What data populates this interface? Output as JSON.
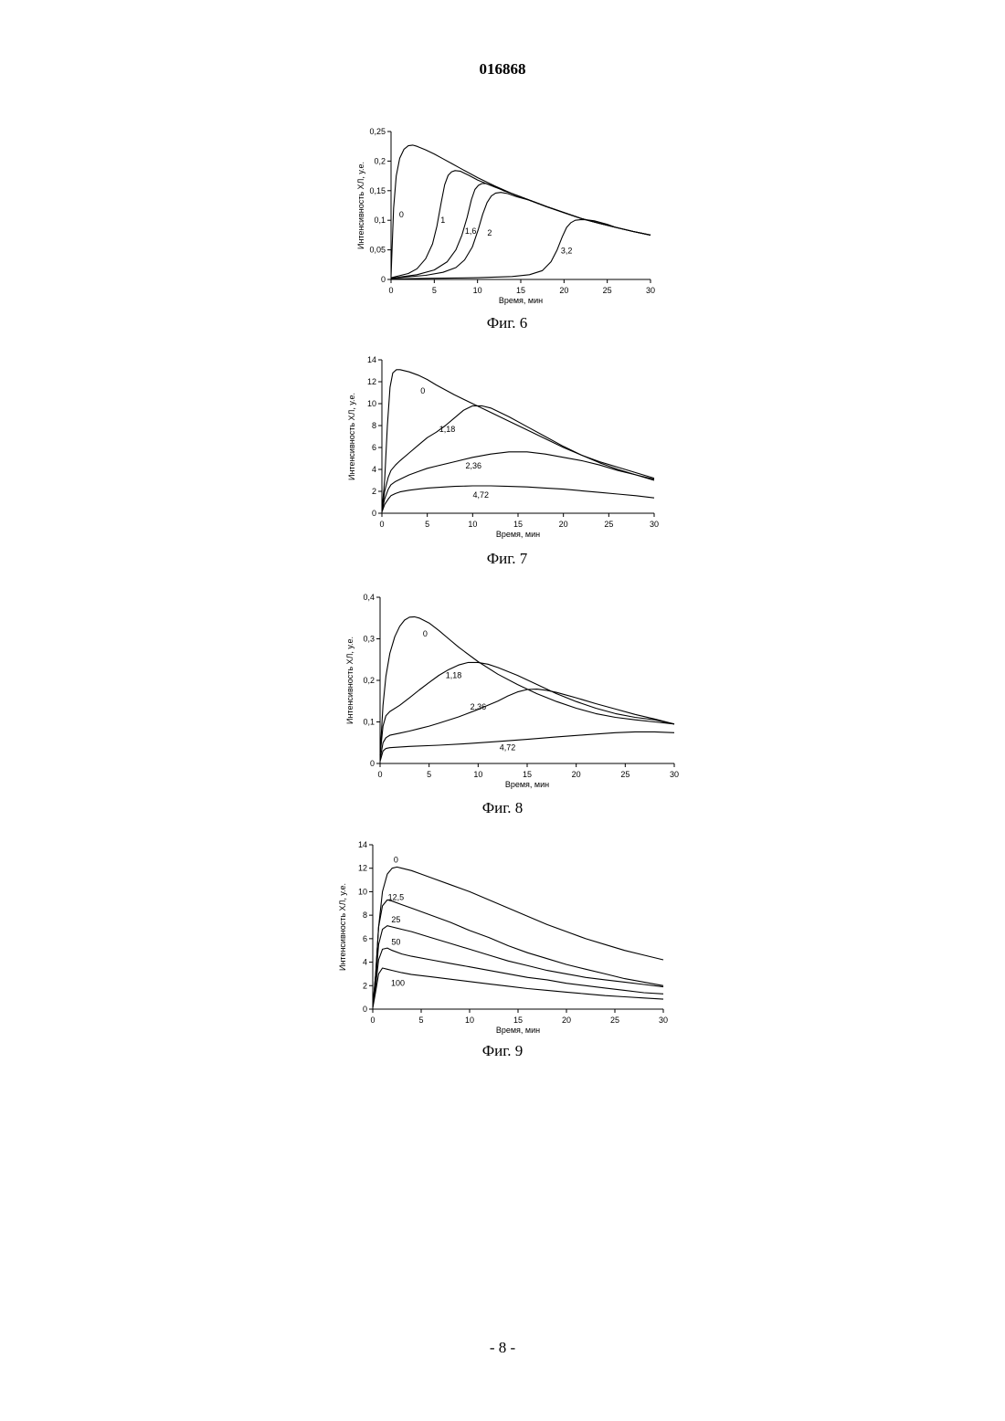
{
  "document": {
    "number": "016868",
    "page_label": "- 8 -"
  },
  "chart_data": [
    {
      "type": "line",
      "caption": "Фиг. 6",
      "xlabel": "Время, мин",
      "ylabel": "Интенсивность ХЛ, у.е.",
      "xlim": [
        0,
        30
      ],
      "ylim": [
        0,
        0.25
      ],
      "x_ticks": [
        0,
        5,
        10,
        15,
        20,
        25,
        30
      ],
      "y_ticks": [
        0,
        0.05,
        0.1,
        0.15,
        0.2,
        0.25
      ],
      "y_tick_labels": [
        "0",
        "0,05",
        "0,1",
        "0,15",
        "0,2",
        "0,25"
      ],
      "grid": false,
      "series": [
        {
          "name": "0",
          "label_at": [
            1.2,
            0.105
          ],
          "x": [
            0,
            0.3,
            0.6,
            1,
            1.5,
            2,
            2.5,
            3,
            4,
            5,
            6,
            7,
            8,
            10,
            12,
            14,
            16,
            18,
            20,
            22,
            24,
            26,
            28,
            30
          ],
          "y": [
            0.005,
            0.12,
            0.175,
            0.205,
            0.22,
            0.226,
            0.227,
            0.225,
            0.219,
            0.212,
            0.204,
            0.196,
            0.188,
            0.172,
            0.158,
            0.145,
            0.134,
            0.123,
            0.113,
            0.103,
            0.095,
            0.088,
            0.081,
            0.075
          ]
        },
        {
          "name": "1",
          "label_at": [
            6,
            0.096
          ],
          "x": [
            0,
            2,
            3,
            4,
            4.8,
            5.3,
            5.8,
            6.2,
            6.6,
            7,
            7.4,
            8,
            9,
            10,
            12,
            14,
            16,
            18,
            20,
            22,
            24,
            26,
            28,
            30
          ],
          "y": [
            0.003,
            0.01,
            0.018,
            0.035,
            0.06,
            0.09,
            0.13,
            0.16,
            0.176,
            0.182,
            0.184,
            0.183,
            0.176,
            0.168,
            0.156,
            0.145,
            0.134,
            0.123,
            0.113,
            0.103,
            0.095,
            0.088,
            0.081,
            0.075
          ]
        },
        {
          "name": "1,6",
          "label_at": [
            9.2,
            0.077
          ],
          "x": [
            0,
            3,
            5,
            6.5,
            7.5,
            8.2,
            8.8,
            9.3,
            9.7,
            10.1,
            10.5,
            11,
            12,
            13,
            14,
            16,
            18,
            20,
            22,
            24,
            26,
            28,
            30
          ],
          "y": [
            0.002,
            0.008,
            0.016,
            0.03,
            0.05,
            0.075,
            0.105,
            0.135,
            0.152,
            0.159,
            0.162,
            0.162,
            0.157,
            0.15,
            0.145,
            0.134,
            0.123,
            0.113,
            0.103,
            0.095,
            0.088,
            0.081,
            0.075
          ]
        },
        {
          "name": "2",
          "label_at": [
            11.4,
            0.074
          ],
          "x": [
            0,
            4,
            6,
            7.5,
            8.5,
            9.4,
            10.1,
            10.6,
            11.1,
            11.6,
            12.1,
            12.7,
            13.5,
            14.5,
            16,
            18,
            20,
            22,
            24,
            26,
            28,
            30
          ],
          "y": [
            0.002,
            0.007,
            0.012,
            0.02,
            0.033,
            0.055,
            0.085,
            0.11,
            0.13,
            0.141,
            0.146,
            0.147,
            0.145,
            0.14,
            0.134,
            0.123,
            0.113,
            0.103,
            0.095,
            0.088,
            0.081,
            0.075
          ]
        },
        {
          "name": "3,2",
          "label_at": [
            20.3,
            0.044
          ],
          "x": [
            0,
            5,
            10,
            14,
            16,
            17.5,
            18.5,
            19.2,
            19.8,
            20.3,
            20.8,
            21.3,
            21.9,
            22.5,
            23.5,
            25,
            26,
            28,
            30
          ],
          "y": [
            0.001,
            0.002,
            0.003,
            0.005,
            0.008,
            0.015,
            0.03,
            0.05,
            0.072,
            0.088,
            0.096,
            0.1,
            0.101,
            0.101,
            0.099,
            0.093,
            0.088,
            0.081,
            0.075
          ]
        }
      ]
    },
    {
      "type": "line",
      "caption": "Фиг. 7",
      "xlabel": "Время, мин",
      "ylabel": "Интенсивность ХЛ, у.е.",
      "xlim": [
        0,
        30
      ],
      "ylim": [
        0,
        14
      ],
      "x_ticks": [
        0,
        5,
        10,
        15,
        20,
        25,
        30
      ],
      "y_ticks": [
        0,
        2,
        4,
        6,
        8,
        10,
        12,
        14
      ],
      "y_tick_labels": [
        "0",
        "2",
        "4",
        "6",
        "8",
        "10",
        "12",
        "14"
      ],
      "grid": false,
      "series": [
        {
          "name": "0",
          "label_at": [
            4.5,
            10.9
          ],
          "x": [
            0,
            0.3,
            0.6,
            0.9,
            1.2,
            1.6,
            2,
            3,
            4,
            5,
            6,
            8,
            10,
            12,
            14,
            16,
            18,
            20,
            22,
            24,
            26,
            28,
            30
          ],
          "y": [
            0.2,
            3,
            8,
            11.5,
            12.8,
            13.1,
            13.1,
            12.9,
            12.6,
            12.2,
            11.7,
            10.8,
            10.0,
            9.2,
            8.4,
            7.6,
            6.8,
            6.0,
            5.3,
            4.7,
            4.2,
            3.7,
            3.2
          ]
        },
        {
          "name": "1,18",
          "label_at": [
            7.2,
            7.4
          ],
          "x": [
            0,
            0.3,
            0.7,
            1,
            1.5,
            2,
            3,
            4,
            5,
            6,
            7,
            8,
            9,
            10,
            11,
            12,
            14,
            16,
            18,
            20,
            22,
            24,
            26,
            28,
            30
          ],
          "y": [
            0.2,
            2,
            3.3,
            3.9,
            4.4,
            4.8,
            5.5,
            6.2,
            6.9,
            7.4,
            8.0,
            8.7,
            9.4,
            9.8,
            9.8,
            9.6,
            8.8,
            7.9,
            7.0,
            6.1,
            5.3,
            4.6,
            4.0,
            3.5,
            3.0
          ]
        },
        {
          "name": "2,36",
          "label_at": [
            10.1,
            4.1
          ],
          "x": [
            0,
            0.3,
            0.7,
            1,
            1.5,
            2,
            3,
            4,
            5,
            6,
            8,
            10,
            12,
            14,
            15,
            16,
            18,
            20,
            22,
            24,
            26,
            28,
            30
          ],
          "y": [
            0.2,
            1.3,
            2.2,
            2.6,
            2.9,
            3.1,
            3.5,
            3.8,
            4.1,
            4.3,
            4.7,
            5.1,
            5.4,
            5.6,
            5.6,
            5.6,
            5.4,
            5.1,
            4.8,
            4.4,
            3.9,
            3.5,
            3.1
          ]
        },
        {
          "name": "4,72",
          "label_at": [
            10.9,
            1.4
          ],
          "x": [
            0,
            0.3,
            0.7,
            1,
            1.5,
            2,
            3,
            4,
            5,
            6,
            8,
            10,
            12,
            14,
            16,
            18,
            20,
            22,
            24,
            26,
            28,
            30
          ],
          "y": [
            0.1,
            0.8,
            1.3,
            1.6,
            1.8,
            1.95,
            2.1,
            2.2,
            2.3,
            2.35,
            2.45,
            2.5,
            2.5,
            2.45,
            2.4,
            2.3,
            2.2,
            2.05,
            1.9,
            1.75,
            1.6,
            1.4
          ]
        }
      ]
    },
    {
      "type": "line",
      "caption": "Фиг. 8",
      "xlabel": "Время, мин",
      "ylabel": "Интенсивность ХЛ, у.е.",
      "xlim": [
        0,
        30
      ],
      "ylim": [
        0,
        0.4
      ],
      "x_ticks": [
        0,
        5,
        10,
        15,
        20,
        25,
        30
      ],
      "y_ticks": [
        0,
        0.1,
        0.2,
        0.3,
        0.4
      ],
      "y_tick_labels": [
        "0",
        "0,1",
        "0,2",
        "0,3",
        "0,4"
      ],
      "grid": false,
      "series": [
        {
          "name": "0",
          "label_at": [
            4.6,
            0.305
          ],
          "x": [
            0,
            0.3,
            0.6,
            1,
            1.5,
            2,
            2.5,
            3,
            3.5,
            4,
            5,
            6,
            7,
            8,
            10,
            12,
            14,
            16,
            18,
            20,
            22,
            24,
            26,
            28,
            30
          ],
          "y": [
            0.02,
            0.14,
            0.21,
            0.265,
            0.305,
            0.33,
            0.345,
            0.352,
            0.353,
            0.35,
            0.338,
            0.32,
            0.3,
            0.28,
            0.245,
            0.215,
            0.19,
            0.168,
            0.149,
            0.133,
            0.12,
            0.111,
            0.105,
            0.1,
            0.095
          ]
        },
        {
          "name": "1,18",
          "label_at": [
            7.5,
            0.205
          ],
          "x": [
            0,
            0.3,
            0.6,
            1,
            2,
            3,
            4,
            5,
            6,
            7,
            8,
            9,
            10,
            11,
            12,
            14,
            16,
            18,
            20,
            22,
            24,
            26,
            28,
            30
          ],
          "y": [
            0.02,
            0.09,
            0.115,
            0.125,
            0.14,
            0.158,
            0.177,
            0.195,
            0.212,
            0.226,
            0.237,
            0.243,
            0.243,
            0.239,
            0.231,
            0.212,
            0.19,
            0.168,
            0.149,
            0.133,
            0.12,
            0.111,
            0.105,
            0.095
          ]
        },
        {
          "name": "2,36",
          "label_at": [
            10,
            0.13
          ],
          "x": [
            0,
            0.3,
            0.6,
            1,
            2,
            3,
            4,
            5,
            6,
            8,
            10,
            12,
            13,
            14,
            15,
            16,
            17,
            18,
            20,
            22,
            24,
            26,
            28,
            30
          ],
          "y": [
            0.01,
            0.05,
            0.062,
            0.068,
            0.073,
            0.078,
            0.084,
            0.09,
            0.097,
            0.112,
            0.13,
            0.15,
            0.162,
            0.172,
            0.178,
            0.179,
            0.176,
            0.171,
            0.158,
            0.144,
            0.131,
            0.118,
            0.107,
            0.095
          ]
        },
        {
          "name": "4,72",
          "label_at": [
            13,
            0.032
          ],
          "x": [
            0,
            0.3,
            0.6,
            1,
            3,
            6,
            9,
            12,
            15,
            18,
            21,
            24,
            26,
            28,
            30
          ],
          "y": [
            0.005,
            0.03,
            0.036,
            0.038,
            0.041,
            0.044,
            0.048,
            0.053,
            0.058,
            0.064,
            0.069,
            0.074,
            0.076,
            0.076,
            0.074
          ]
        }
      ]
    },
    {
      "type": "line",
      "caption": "Фиг. 9",
      "xlabel": "Время, мин",
      "ylabel": "Интенсивность ХЛ, у.е.",
      "xlim": [
        0,
        30
      ],
      "ylim": [
        0,
        14
      ],
      "x_ticks": [
        0,
        5,
        10,
        15,
        20,
        25,
        30
      ],
      "y_ticks": [
        0,
        2,
        4,
        6,
        8,
        10,
        12,
        14
      ],
      "y_tick_labels": [
        "0",
        "2",
        "4",
        "6",
        "8",
        "10",
        "12",
        "14"
      ],
      "grid": false,
      "series": [
        {
          "name": "0",
          "label_at": [
            2.4,
            12.5
          ],
          "x": [
            0,
            0.3,
            0.6,
            1,
            1.5,
            2,
            2.5,
            3,
            4,
            5,
            6,
            8,
            10,
            12,
            14,
            16,
            18,
            20,
            22,
            24,
            26,
            28,
            30
          ],
          "y": [
            0.2,
            3,
            7,
            10,
            11.5,
            12,
            12.1,
            12,
            11.8,
            11.5,
            11.2,
            10.6,
            10,
            9.3,
            8.6,
            7.9,
            7.2,
            6.6,
            6,
            5.5,
            5,
            4.6,
            4.2
          ]
        },
        {
          "name": "12,5",
          "label_at": [
            2.4,
            9.3
          ],
          "x": [
            0,
            0.3,
            0.6,
            1,
            1.5,
            2,
            3,
            4,
            6,
            8,
            10,
            12,
            14,
            16,
            18,
            20,
            22,
            24,
            26,
            28,
            30
          ],
          "y": [
            0.2,
            3,
            7,
            8.8,
            9.3,
            9.2,
            8.9,
            8.6,
            8,
            7.4,
            6.7,
            6.1,
            5.4,
            4.8,
            4.3,
            3.8,
            3.4,
            3,
            2.6,
            2.3,
            2.0
          ]
        },
        {
          "name": "25",
          "label_at": [
            2.4,
            7.4
          ],
          "x": [
            0,
            0.3,
            0.6,
            1,
            1.5,
            2,
            3,
            4,
            6,
            8,
            10,
            12,
            14,
            16,
            18,
            20,
            22,
            24,
            26,
            28,
            30
          ],
          "y": [
            0.2,
            2.5,
            5.5,
            6.8,
            7.1,
            7.0,
            6.8,
            6.6,
            6.1,
            5.6,
            5.1,
            4.6,
            4.1,
            3.7,
            3.3,
            3.0,
            2.7,
            2.5,
            2.3,
            2.1,
            1.9
          ]
        },
        {
          "name": "50",
          "label_at": [
            2.4,
            5.5
          ],
          "x": [
            0,
            0.3,
            0.6,
            1,
            1.5,
            2,
            3,
            4,
            6,
            8,
            10,
            12,
            14,
            16,
            18,
            20,
            22,
            24,
            26,
            28,
            30
          ],
          "y": [
            0.2,
            2,
            4.2,
            5.1,
            5.2,
            5.0,
            4.7,
            4.5,
            4.2,
            3.9,
            3.6,
            3.3,
            3.0,
            2.7,
            2.5,
            2.2,
            2.0,
            1.8,
            1.6,
            1.4,
            1.3
          ]
        },
        {
          "name": "100",
          "label_at": [
            2.6,
            2.0
          ],
          "x": [
            0,
            0.3,
            0.6,
            1,
            1.5,
            2,
            3,
            4,
            6,
            8,
            10,
            12,
            14,
            16,
            18,
            20,
            22,
            24,
            26,
            28,
            30
          ],
          "y": [
            0.1,
            1.5,
            3,
            3.5,
            3.4,
            3.3,
            3.1,
            2.95,
            2.75,
            2.55,
            2.35,
            2.15,
            1.95,
            1.75,
            1.6,
            1.45,
            1.3,
            1.15,
            1.05,
            0.95,
            0.85
          ]
        }
      ]
    }
  ]
}
